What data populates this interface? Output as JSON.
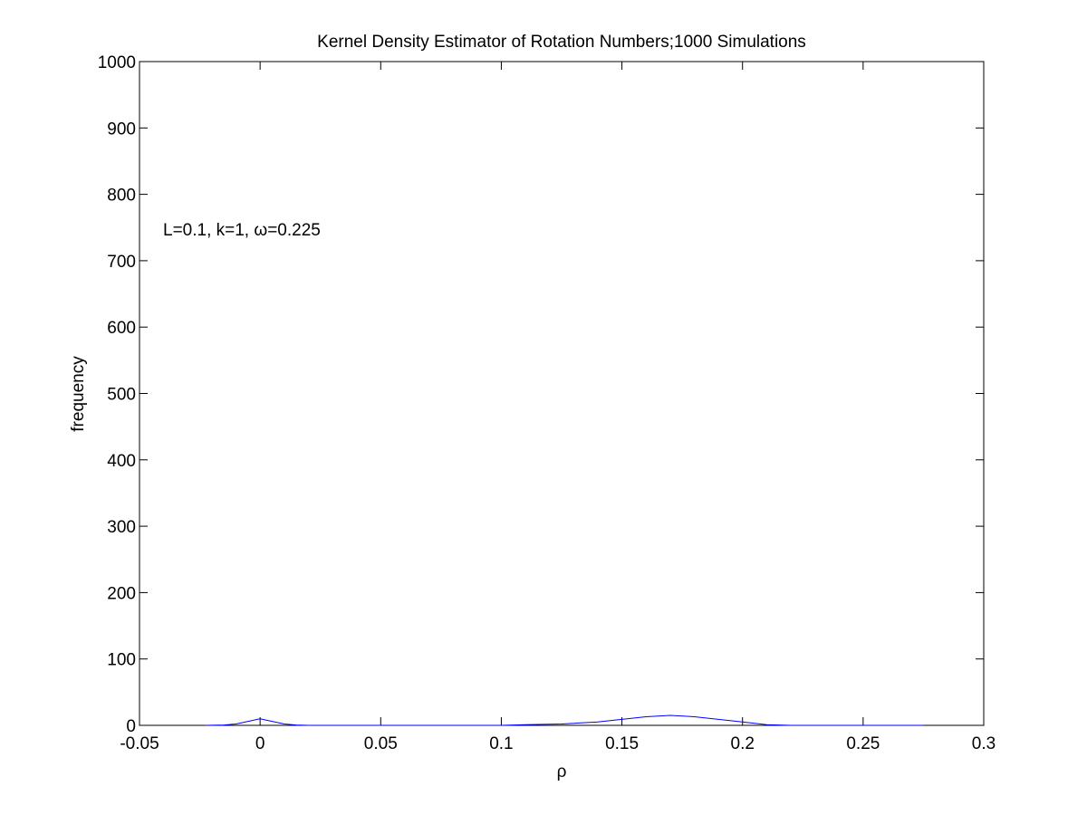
{
  "chart_data": {
    "type": "line",
    "title": "Kernel Density Estimator of Rotation Numbers;1000 Simulations",
    "xlabel": "ρ",
    "ylabel": "frequency",
    "xlim": [
      -0.05,
      0.3
    ],
    "ylim": [
      0,
      1000
    ],
    "xticks": [
      -0.05,
      0,
      0.05,
      0.1,
      0.15,
      0.2,
      0.25,
      0.3
    ],
    "xtick_labels": [
      "-0.05",
      "0",
      "0.05",
      "0.1",
      "0.15",
      "0.2",
      "0.25",
      "0.3"
    ],
    "yticks": [
      0,
      100,
      200,
      300,
      400,
      500,
      600,
      700,
      800,
      900,
      1000
    ],
    "ytick_labels": [
      "0",
      "100",
      "200",
      "300",
      "400",
      "500",
      "600",
      "700",
      "800",
      "900",
      "1000"
    ],
    "annotation": "L=0.1, k=1, ω=0.225",
    "grid": false,
    "box": true,
    "colors": {
      "series": "#0000ff",
      "axes": "#000000",
      "background": "#ffffff"
    },
    "series": [
      {
        "values_x": [
          -0.0225,
          -0.015,
          -0.01,
          -0.005,
          0,
          0.005,
          0.01,
          0.015,
          0.02,
          0.05,
          0.1,
          0.11,
          0.125,
          0.14,
          0.15,
          0.16,
          0.17,
          0.18,
          0.19,
          0.2,
          0.21,
          0.22,
          0.25,
          0.275
        ],
        "values_y": [
          0,
          0.5,
          2,
          6,
          10,
          6,
          2,
          0.5,
          0,
          0,
          0,
          1,
          2,
          5,
          9,
          13,
          15,
          13,
          9,
          5,
          1,
          0,
          0,
          0
        ]
      }
    ]
  }
}
